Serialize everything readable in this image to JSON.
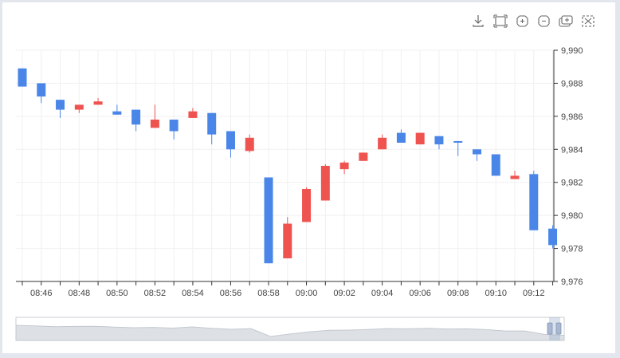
{
  "toolbar": {
    "icons": [
      "download-icon",
      "zoom-select-icon",
      "zoom-in-icon",
      "zoom-out-icon",
      "pan-icon",
      "reset-icon"
    ]
  },
  "colors": {
    "up": "#ef5350",
    "down": "#4a86e8",
    "axis": "#333333",
    "grid": "#f0f0f0",
    "navigator_fill": "#dde1e6",
    "navigator_border": "#c8ccd2"
  },
  "chart_data": {
    "type": "candlestick",
    "title": "",
    "xlabel": "",
    "ylabel": "",
    "ylim": [
      9.976,
      9.99
    ],
    "y_ticks": [
      9.99,
      9.988,
      9.986,
      9.984,
      9.982,
      9.98,
      9.978,
      9.976
    ],
    "y_tick_labels": [
      "9,990",
      "9,988",
      "9,986",
      "9,984",
      "9,982",
      "9,980",
      "9,978",
      "9,976"
    ],
    "x_tick_labels": [
      "08:46",
      "08:48",
      "08:50",
      "08:52",
      "08:54",
      "08:56",
      "08:58",
      "09:00",
      "09:02",
      "09:04",
      "09:06",
      "09:08",
      "09:10",
      "09:12"
    ],
    "grid": true,
    "y_axis_side": "right",
    "series": [
      {
        "candles": [
          {
            "t": "08:45",
            "o": 9.9889,
            "h": 9.9889,
            "l": 9.9878,
            "c": 9.9878
          },
          {
            "t": "08:46",
            "o": 9.988,
            "h": 9.988,
            "l": 9.9868,
            "c": 9.9872
          },
          {
            "t": "08:47",
            "o": 9.987,
            "h": 9.987,
            "l": 9.9859,
            "c": 9.9864
          },
          {
            "t": "08:48",
            "o": 9.9864,
            "h": 9.9867,
            "l": 9.9862,
            "c": 9.9867
          },
          {
            "t": "08:49",
            "o": 9.9867,
            "h": 9.9871,
            "l": 9.9867,
            "c": 9.9869
          },
          {
            "t": "08:50",
            "o": 9.9863,
            "h": 9.9867,
            "l": 9.9861,
            "c": 9.9861
          },
          {
            "t": "08:51",
            "o": 9.9864,
            "h": 9.9864,
            "l": 9.9851,
            "c": 9.9855
          },
          {
            "t": "08:52",
            "o": 9.9853,
            "h": 9.9867,
            "l": 9.9853,
            "c": 9.9858
          },
          {
            "t": "08:53",
            "o": 9.9858,
            "h": 9.9858,
            "l": 9.9846,
            "c": 9.9851
          },
          {
            "t": "08:54",
            "o": 9.9859,
            "h": 9.9865,
            "l": 9.9859,
            "c": 9.9863
          },
          {
            "t": "08:55",
            "o": 9.9862,
            "h": 9.9862,
            "l": 9.9843,
            "c": 9.9849
          },
          {
            "t": "08:56",
            "o": 9.9851,
            "h": 9.9851,
            "l": 9.9835,
            "c": 9.984
          },
          {
            "t": "08:57",
            "o": 9.9839,
            "h": 9.9849,
            "l": 9.9838,
            "c": 9.9847
          },
          {
            "t": "08:58",
            "o": 9.9823,
            "h": 9.9823,
            "l": 9.9771,
            "c": 9.9771
          },
          {
            "t": "08:59",
            "o": 9.9774,
            "h": 9.9799,
            "l": 9.9774,
            "c": 9.9795
          },
          {
            "t": "09:00",
            "o": 9.9796,
            "h": 9.9817,
            "l": 9.9796,
            "c": 9.9816
          },
          {
            "t": "09:01",
            "o": 9.9809,
            "h": 9.9831,
            "l": 9.9809,
            "c": 9.983
          },
          {
            "t": "09:02",
            "o": 9.9828,
            "h": 9.9833,
            "l": 9.9825,
            "c": 9.9832
          },
          {
            "t": "09:03",
            "o": 9.9833,
            "h": 9.9838,
            "l": 9.9833,
            "c": 9.9838
          },
          {
            "t": "09:04",
            "o": 9.984,
            "h": 9.9849,
            "l": 9.984,
            "c": 9.9847
          },
          {
            "t": "09:05",
            "o": 9.985,
            "h": 9.9852,
            "l": 9.9844,
            "c": 9.9844
          },
          {
            "t": "09:06",
            "o": 9.9843,
            "h": 9.985,
            "l": 9.9843,
            "c": 9.985
          },
          {
            "t": "09:07",
            "o": 9.9848,
            "h": 9.9848,
            "l": 9.984,
            "c": 9.9843
          },
          {
            "t": "09:08",
            "o": 9.9845,
            "h": 9.9845,
            "l": 9.9836,
            "c": 9.9844
          },
          {
            "t": "09:09",
            "o": 9.984,
            "h": 9.984,
            "l": 9.9833,
            "c": 9.9837
          },
          {
            "t": "09:10",
            "o": 9.9837,
            "h": 9.9837,
            "l": 9.9824,
            "c": 9.9824
          },
          {
            "t": "09:11",
            "o": 9.9822,
            "h": 9.9827,
            "l": 9.9822,
            "c": 9.9824
          },
          {
            "t": "09:12",
            "o": 9.9825,
            "h": 9.9827,
            "l": 9.9791,
            "c": 9.9791
          },
          {
            "t": "09:13",
            "o": 9.9792,
            "h": 9.9794,
            "l": 9.978,
            "c": 9.9782
          }
        ]
      }
    ]
  }
}
